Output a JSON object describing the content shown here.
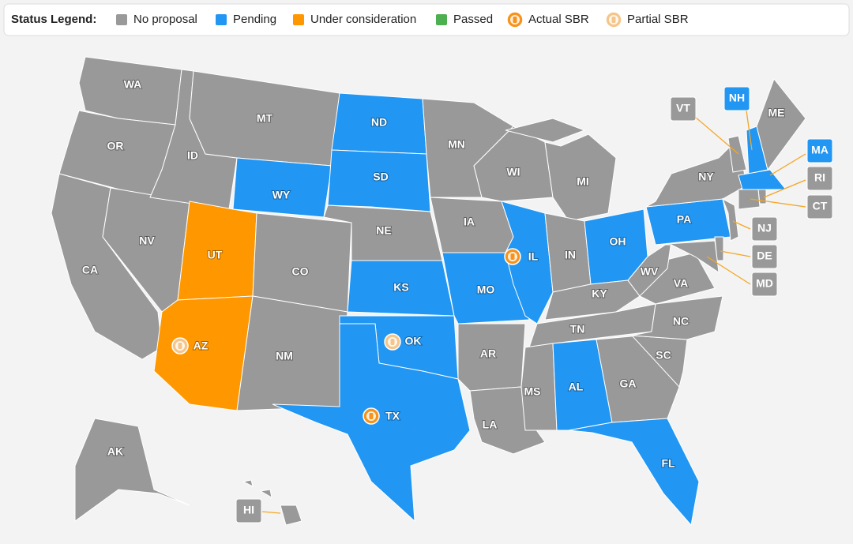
{
  "legend": {
    "title": "Status Legend:",
    "items": [
      {
        "label": "No proposal",
        "color": "#999999"
      },
      {
        "label": "Pending",
        "color": "#2196f3"
      },
      {
        "label": "Under consideration",
        "color": "#ff9800"
      },
      {
        "label": "Passed",
        "color": "#4caf50"
      }
    ],
    "markers": [
      {
        "label": "Actual SBR",
        "color": "#f7931a"
      },
      {
        "label": "Partial SBR",
        "color": "#f5c58a"
      }
    ]
  },
  "states": [
    {
      "label": "WA",
      "status": "No proposal"
    },
    {
      "label": "OR",
      "status": "No proposal"
    },
    {
      "label": "CA",
      "status": "No proposal"
    },
    {
      "label": "NV",
      "status": "No proposal"
    },
    {
      "label": "ID",
      "status": "No proposal"
    },
    {
      "label": "MT",
      "status": "No proposal"
    },
    {
      "label": "WY",
      "status": "Pending"
    },
    {
      "label": "UT",
      "status": "Under consideration"
    },
    {
      "label": "CO",
      "status": "No proposal"
    },
    {
      "label": "AZ",
      "status": "Under consideration",
      "sbr": "Partial SBR"
    },
    {
      "label": "NM",
      "status": "No proposal"
    },
    {
      "label": "ND",
      "status": "Pending"
    },
    {
      "label": "SD",
      "status": "Pending"
    },
    {
      "label": "NE",
      "status": "No proposal"
    },
    {
      "label": "KS",
      "status": "Pending"
    },
    {
      "label": "OK",
      "status": "Pending",
      "sbr": "Partial SBR"
    },
    {
      "label": "TX",
      "status": "Pending",
      "sbr": "Actual SBR"
    },
    {
      "label": "MN",
      "status": "No proposal"
    },
    {
      "label": "IA",
      "status": "No proposal"
    },
    {
      "label": "MO",
      "status": "Pending"
    },
    {
      "label": "AR",
      "status": "No proposal"
    },
    {
      "label": "LA",
      "status": "No proposal"
    },
    {
      "label": "WI",
      "status": "No proposal"
    },
    {
      "label": "IL",
      "status": "Pending",
      "sbr": "Actual SBR"
    },
    {
      "label": "MI",
      "status": "No proposal"
    },
    {
      "label": "IN",
      "status": "No proposal"
    },
    {
      "label": "OH",
      "status": "Pending"
    },
    {
      "label": "KY",
      "status": "No proposal"
    },
    {
      "label": "TN",
      "status": "No proposal"
    },
    {
      "label": "MS",
      "status": "No proposal"
    },
    {
      "label": "AL",
      "status": "Pending"
    },
    {
      "label": "GA",
      "status": "No proposal"
    },
    {
      "label": "FL",
      "status": "Pending"
    },
    {
      "label": "SC",
      "status": "No proposal"
    },
    {
      "label": "NC",
      "status": "No proposal"
    },
    {
      "label": "VA",
      "status": "No proposal"
    },
    {
      "label": "WV",
      "status": "No proposal"
    },
    {
      "label": "PA",
      "status": "Pending"
    },
    {
      "label": "NY",
      "status": "No proposal"
    },
    {
      "label": "NJ",
      "status": "No proposal"
    },
    {
      "label": "DE",
      "status": "No proposal"
    },
    {
      "label": "MD",
      "status": "No proposal"
    },
    {
      "label": "VT",
      "status": "No proposal"
    },
    {
      "label": "NH",
      "status": "Pending"
    },
    {
      "label": "ME",
      "status": "No proposal"
    },
    {
      "label": "MA",
      "status": "Pending"
    },
    {
      "label": "RI",
      "status": "No proposal"
    },
    {
      "label": "CT",
      "status": "No proposal"
    },
    {
      "label": "AK",
      "status": "No proposal"
    },
    {
      "label": "HI",
      "status": "No proposal"
    }
  ]
}
